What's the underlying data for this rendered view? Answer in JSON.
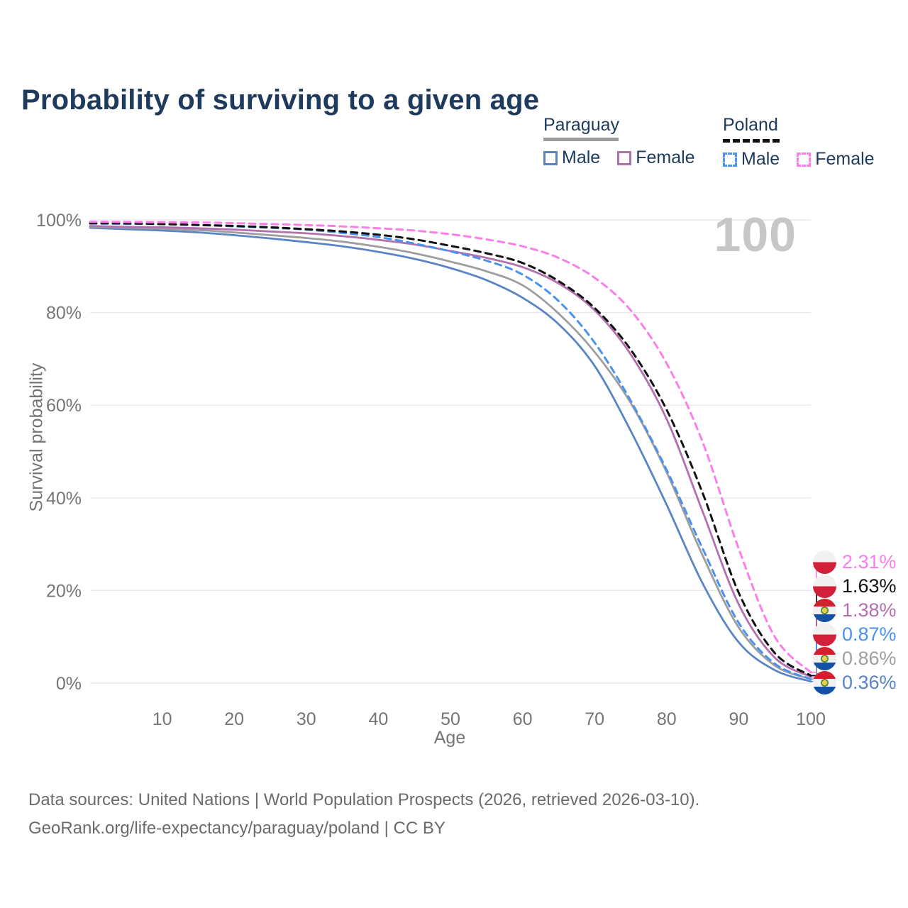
{
  "title": "Probability of surviving to a given age",
  "legend": {
    "paraguay": {
      "label": "Paraguay",
      "male": "Male",
      "female": "Female",
      "line_style": "solid"
    },
    "poland": {
      "label": "Poland",
      "male": "Male",
      "female": "Female",
      "line_style": "dashed"
    }
  },
  "colors": {
    "paraguay_male": "#5b84c4",
    "paraguay_both": "#9e9e9e",
    "paraguay_female": "#b470ae",
    "poland_male": "#4b92f0",
    "poland_both": "#111111",
    "poland_female": "#fc7ee8",
    "title_text": "#1e3a5c",
    "axis_text": "#757575",
    "gridline": "#e8e8e8",
    "watermark": "#c7c7c7",
    "poland_flag_red": "#d2203a",
    "paraguay_flag_red": "#d2202f",
    "paraguay_flag_blue": "#1450a3"
  },
  "chart_data": {
    "type": "line",
    "title": "Probability of surviving to a given age",
    "xlabel": "Age",
    "ylabel": "Survival probability",
    "xlim": [
      0,
      100
    ],
    "ylim": [
      0,
      100
    ],
    "x_ticks": [
      10,
      20,
      30,
      40,
      50,
      60,
      70,
      80,
      90,
      100
    ],
    "y_ticks": [
      "0%",
      "20%",
      "40%",
      "60%",
      "80%",
      "100%"
    ],
    "grid": "horizontal-only",
    "age_counter": "100",
    "legend_position": "top-right",
    "ages": [
      0,
      5,
      10,
      15,
      20,
      25,
      30,
      35,
      40,
      45,
      50,
      55,
      60,
      65,
      70,
      75,
      80,
      85,
      90,
      95,
      100
    ],
    "series": [
      {
        "name": "Paraguay Male",
        "key": "paraguay_male",
        "country": "Paraguay",
        "sex": "Male",
        "style": "solid",
        "end_value": "0.36%",
        "values": [
          98.3,
          98.0,
          97.7,
          97.3,
          96.7,
          96.0,
          95.2,
          94.3,
          93.1,
          91.6,
          89.6,
          87.0,
          83.2,
          77.5,
          68.5,
          54.5,
          38.5,
          21.5,
          8.8,
          2.8,
          0.36
        ]
      },
      {
        "name": "Paraguay Total",
        "key": "paraguay_both",
        "country": "Paraguay",
        "sex": "Both",
        "style": "solid",
        "end_value": "0.86%",
        "values": [
          98.5,
          98.3,
          98.1,
          97.8,
          97.3,
          96.7,
          96.1,
          95.3,
          94.2,
          92.8,
          91.0,
          88.9,
          85.9,
          79.8,
          71.5,
          60.5,
          45.5,
          27.5,
          12.0,
          3.8,
          0.86
        ]
      },
      {
        "name": "Paraguay Female",
        "key": "paraguay_female",
        "country": "Paraguay",
        "sex": "Female",
        "style": "solid",
        "end_value": "1.38%",
        "values": [
          98.7,
          98.5,
          98.4,
          98.2,
          97.9,
          97.5,
          97.1,
          96.5,
          95.7,
          94.7,
          93.3,
          91.8,
          89.8,
          86.3,
          80.5,
          71.0,
          57.0,
          37.0,
          17.0,
          5.5,
          1.38
        ]
      },
      {
        "name": "Poland Male",
        "key": "poland_male",
        "country": "Poland",
        "sex": "Male",
        "style": "dashed",
        "end_value": "0.87%",
        "values": [
          99.2,
          99.15,
          99.1,
          98.9,
          98.6,
          98.3,
          97.9,
          97.2,
          96.3,
          94.9,
          93.2,
          91.2,
          88.2,
          82.5,
          73.5,
          61.0,
          46.0,
          29.0,
          13.0,
          4.2,
          0.87
        ]
      },
      {
        "name": "Poland Total",
        "key": "poland_both",
        "country": "Poland",
        "sex": "Both",
        "style": "dashed",
        "end_value": "1.63%",
        "values": [
          99.3,
          99.25,
          99.1,
          98.9,
          98.7,
          98.4,
          98.0,
          97.5,
          96.8,
          95.8,
          94.4,
          92.8,
          90.7,
          86.8,
          81.0,
          72.0,
          59.0,
          41.0,
          19.5,
          6.5,
          1.63
        ]
      },
      {
        "name": "Poland Female",
        "key": "poland_female",
        "country": "Poland",
        "sex": "Female",
        "style": "dashed",
        "end_value": "2.31%",
        "values": [
          99.6,
          99.55,
          99.5,
          99.45,
          99.3,
          99.1,
          98.9,
          98.6,
          98.2,
          97.7,
          96.9,
          95.8,
          94.3,
          91.8,
          87.5,
          80.5,
          69.0,
          52.0,
          29.0,
          10.0,
          2.31
        ]
      }
    ]
  },
  "end_labels": [
    {
      "value": "2.31%",
      "series": "poland_female",
      "flag": "poland"
    },
    {
      "value": "1.63%",
      "series": "poland_both",
      "flag": "poland"
    },
    {
      "value": "1.38%",
      "series": "paraguay_female",
      "flag": "paraguay"
    },
    {
      "value": "0.87%",
      "series": "poland_male",
      "flag": "poland"
    },
    {
      "value": "0.86%",
      "series": "paraguay_both",
      "flag": "paraguay"
    },
    {
      "value": "0.36%",
      "series": "paraguay_male",
      "flag": "paraguay"
    }
  ],
  "footer": {
    "line1": "Data sources: United Nations | World Population Prospects (2026, retrieved 2026-03-10).",
    "line2": "GeoRank.org/life-expectancy/paraguay/poland | CC BY"
  }
}
